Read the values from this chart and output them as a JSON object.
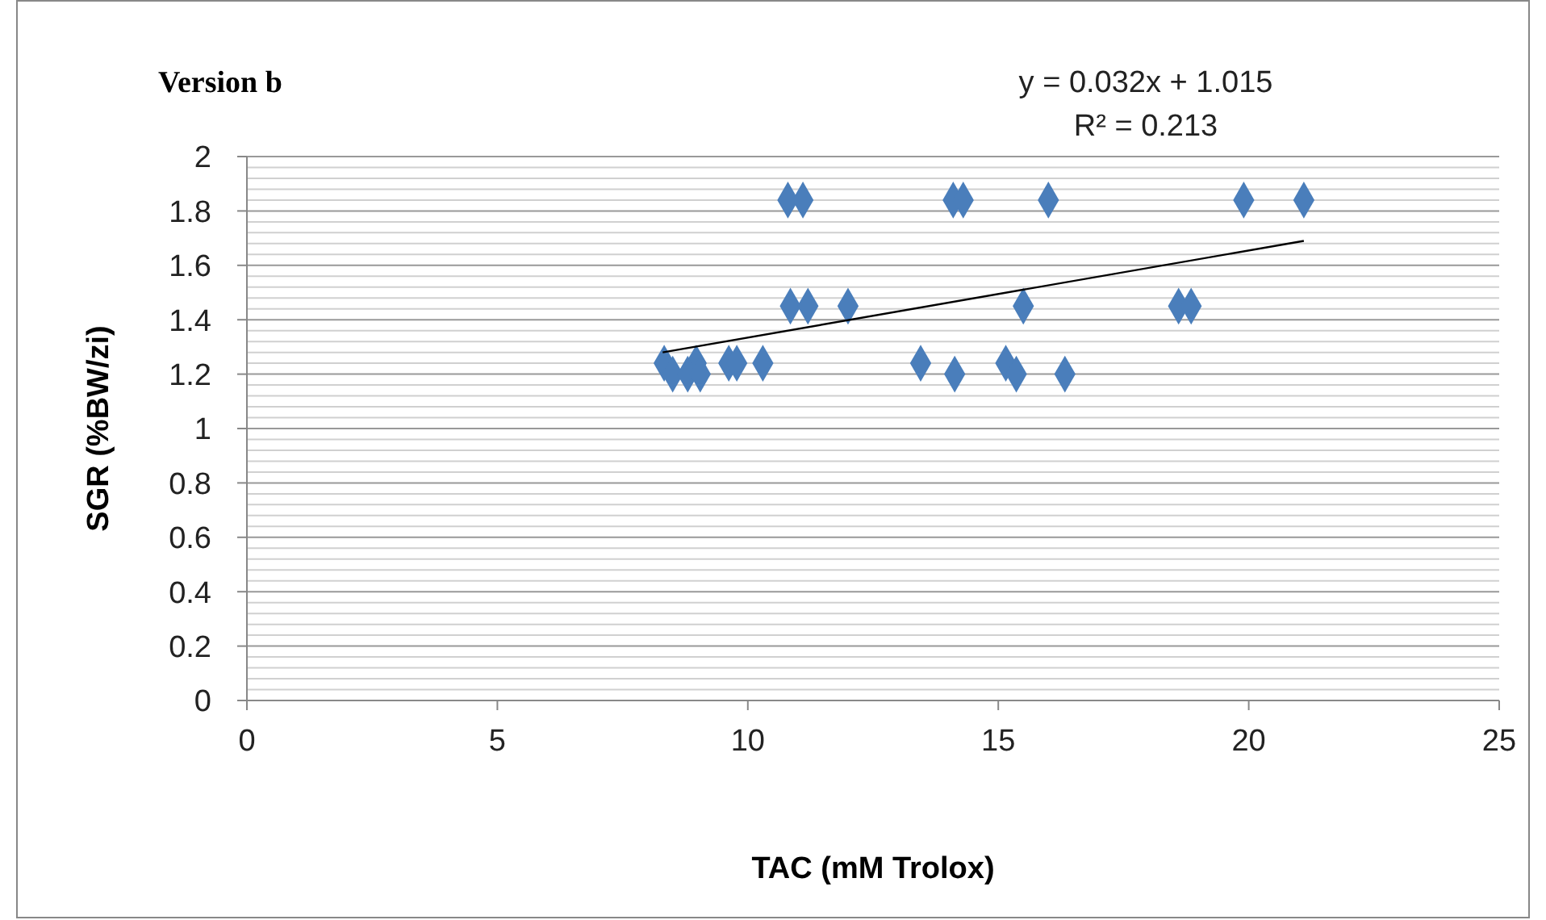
{
  "chart_data": {
    "type": "scatter",
    "title": "Version b",
    "xlabel": "TAC (mM Trolox)",
    "ylabel": "SGR (%BW/zi)",
    "xlim": [
      0,
      25
    ],
    "xticks": [
      0,
      5,
      10,
      15,
      20,
      25
    ],
    "ylim": [
      0,
      2
    ],
    "yticks": [
      0,
      {
        "value": 0.04,
        "label": null
      },
      {
        "value": 0.08,
        "label": null
      },
      {
        "value": 0.12,
        "label": null
      },
      {
        "value": 0.16,
        "label": null
      },
      0.2,
      {
        "value": 0.24,
        "label": null
      },
      {
        "value": 0.28,
        "label": null
      },
      {
        "value": 0.32,
        "label": null
      },
      {
        "value": 0.36,
        "label": null
      },
      0.4,
      {
        "value": 0.44,
        "label": null
      },
      {
        "value": 0.48,
        "label": null
      },
      {
        "value": 0.52,
        "label": null
      },
      {
        "value": 0.56,
        "label": null
      },
      0.6,
      {
        "value": 0.64,
        "label": null
      },
      {
        "value": 0.68,
        "label": null
      },
      {
        "value": 0.72,
        "label": null
      },
      {
        "value": 0.76,
        "label": null
      },
      0.8,
      {
        "value": 0.84,
        "label": null
      },
      {
        "value": 0.88,
        "label": null
      },
      {
        "value": 0.92,
        "label": null
      },
      {
        "value": 0.96,
        "label": null
      },
      1,
      {
        "value": 1.04,
        "label": null
      },
      {
        "value": 1.08,
        "label": null
      },
      {
        "value": 1.12,
        "label": null
      },
      {
        "value": 1.16,
        "label": null
      },
      1.2,
      {
        "value": 1.24,
        "label": null
      },
      {
        "value": 1.28,
        "label": null
      },
      {
        "value": 1.32,
        "label": null
      },
      {
        "value": 1.36,
        "label": null
      },
      1.4,
      {
        "value": 1.44,
        "label": null
      },
      {
        "value": 1.48,
        "label": null
      },
      {
        "value": 1.52,
        "label": null
      },
      {
        "value": 1.56,
        "label": null
      },
      1.6,
      {
        "value": 1.64,
        "label": null
      },
      {
        "value": 1.68,
        "label": null
      },
      {
        "value": 1.72,
        "label": null
      },
      {
        "value": 1.76,
        "label": null
      },
      1.8,
      {
        "value": 1.84,
        "label": null
      },
      {
        "value": 1.88,
        "label": null
      },
      {
        "value": 1.92,
        "label": null
      },
      {
        "value": 1.96,
        "label": null
      },
      2
    ],
    "grid": "y",
    "series": [
      {
        "type": "scatter",
        "color": "#4a7ebb",
        "marker": "diamond",
        "x": [
          10.8,
          11.1,
          14.1,
          14.3,
          16.0,
          19.9,
          21.1,
          10.85,
          11.2,
          12.0,
          15.5,
          18.6,
          18.85,
          8.33,
          8.97,
          9.62,
          9.78,
          10.3,
          13.45,
          15.15,
          8.5,
          8.8,
          9.05,
          14.13,
          15.36,
          16.33
        ],
        "values": [
          1.84,
          1.84,
          1.84,
          1.84,
          1.84,
          1.84,
          1.84,
          1.45,
          1.45,
          1.45,
          1.45,
          1.45,
          1.45,
          1.24,
          1.24,
          1.24,
          1.24,
          1.24,
          1.24,
          1.24,
          1.2,
          1.2,
          1.2,
          1.2,
          1.2,
          1.2
        ]
      },
      {
        "type": "line",
        "color": "#000000",
        "line_style": "solid",
        "x": [
          8.3,
          21.1
        ],
        "values": [
          1.28,
          1.69
        ]
      }
    ],
    "annotations": [
      "y = 0.032x + 1.015",
      "R² = 0.213"
    ]
  }
}
